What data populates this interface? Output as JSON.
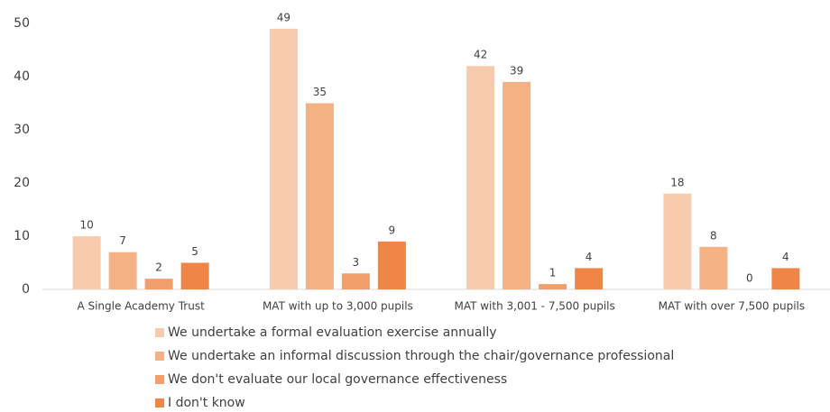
{
  "chart_data": {
    "type": "bar",
    "categories": [
      "A Single Academy Trust",
      "MAT with up to 3,000 pupils",
      "MAT with 3,001 - 7,500 pupils",
      "MAT with over 7,500 pupils"
    ],
    "series": [
      {
        "name": "We undertake a formal evaluation exercise annually",
        "color": "#f8cbad",
        "values": [
          10,
          49,
          42,
          18
        ]
      },
      {
        "name": "We undertake an informal discussion through the chair/governance professional",
        "color": "#f4b183",
        "values": [
          7,
          35,
          39,
          8
        ]
      },
      {
        "name": "We don't evaluate our local governance effectiveness",
        "color": "#f29e6a",
        "values": [
          2,
          3,
          1,
          0
        ]
      },
      {
        "name": "I don't know",
        "color": "#ef8645",
        "values": [
          5,
          9,
          4,
          4
        ]
      }
    ],
    "ylim": [
      0,
      50
    ],
    "yticks": [
      0,
      10,
      20,
      30,
      40,
      50
    ],
    "grid": false,
    "legend": "bottom",
    "data_labels": true
  }
}
